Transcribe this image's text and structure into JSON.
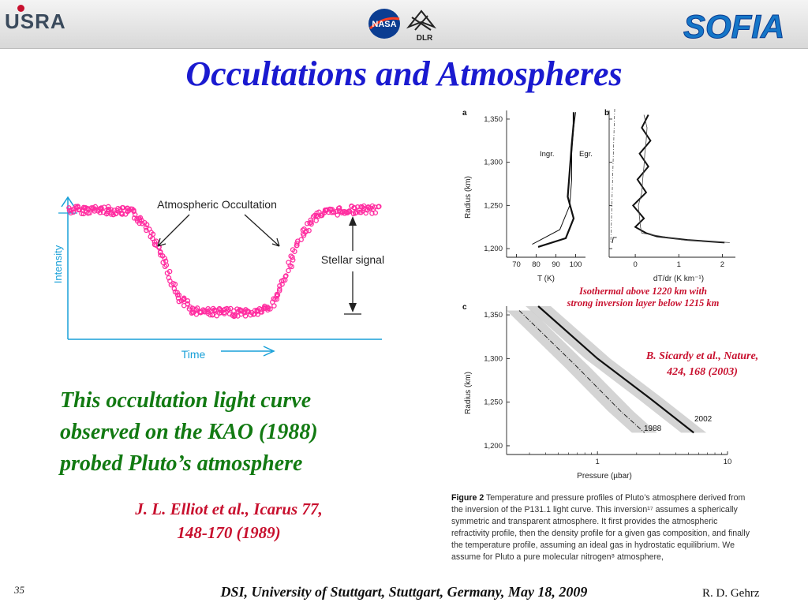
{
  "header": {
    "usra_logo": "USRA",
    "nasa_logo": "NASA",
    "dlr_logo": "DLR",
    "sofia_logo": "SOFIA"
  },
  "title": "Occultations and Atmospheres",
  "left_chart": {
    "annotation": "Atmospheric Occultation",
    "stellar_signal": "Stellar signal",
    "ylabel": "Intensity",
    "xlabel": "Time",
    "point_color": "#ff2da0"
  },
  "chart_data": [
    {
      "type": "scatter",
      "title": "Atmospheric Occultation",
      "xlabel": "Time",
      "ylabel": "Intensity",
      "levels": {
        "baseline": 1.0,
        "occulted": 0.0
      },
      "series": [
        {
          "x": [
            0,
            10,
            20,
            25,
            30,
            35,
            40,
            50,
            60,
            65,
            70,
            75,
            80,
            90,
            100
          ],
          "values": [
            1.0,
            1.0,
            0.98,
            0.85,
            0.55,
            0.15,
            0.02,
            0.0,
            0.0,
            0.05,
            0.35,
            0.75,
            0.96,
            1.0,
            1.0
          ]
        }
      ]
    },
    {
      "type": "line",
      "panel": "a",
      "xlabel": "T (K)",
      "ylabel": "Radius (km)",
      "xticks": [
        "70",
        "80",
        "90",
        "100"
      ],
      "yticks": [
        "1,200",
        "1,250",
        "1,300",
        "1,350"
      ],
      "xlim": [
        65,
        105
      ],
      "ylim": [
        1190,
        1360
      ],
      "series": [
        {
          "name": "Ingr.",
          "x": [
            81,
            95,
            99,
            96,
            97,
            98,
            99,
            99
          ],
          "values": [
            1202,
            1212,
            1235,
            1260,
            1290,
            1320,
            1345,
            1358
          ]
        },
        {
          "name": "Egr.",
          "x": [
            78,
            92,
            97,
            98,
            98,
            99,
            100
          ],
          "values": [
            1205,
            1222,
            1250,
            1280,
            1310,
            1340,
            1358
          ]
        }
      ]
    },
    {
      "type": "line",
      "panel": "b",
      "xlabel": "dT/dr (K km⁻¹)",
      "ylabel": "",
      "xticks": [
        "0",
        "1",
        "2"
      ],
      "yticks": [
        "1,200",
        "1,250",
        "1,300",
        "1,350"
      ],
      "xlim": [
        -0.6,
        2.3
      ],
      "ylim": [
        1190,
        1360
      ],
      "annotations": [
        "Γ"
      ],
      "series": [
        {
          "x": [
            0.3,
            0.15,
            0.35,
            0.1,
            0.3,
            0.05,
            0.25,
            -0.05,
            0.2,
            0.0,
            0.25,
            0.5,
            1.2,
            2.05
          ],
          "values": [
            1355,
            1340,
            1325,
            1310,
            1295,
            1280,
            1265,
            1250,
            1235,
            1225,
            1218,
            1214,
            1210,
            1207
          ]
        }
      ]
    },
    {
      "type": "line",
      "panel": "c",
      "xlabel": "Pressure (µbar)",
      "ylabel": "Radius (km)",
      "xscale": "log",
      "xticks": [
        "1",
        "10"
      ],
      "yticks": [
        "1,200",
        "1,250",
        "1,300",
        "1,350"
      ],
      "xlim": [
        0.2,
        10
      ],
      "ylim": [
        1190,
        1360
      ],
      "series": [
        {
          "name": "2002",
          "x": [
            0.35,
            1.0,
            2.5,
            5.5
          ],
          "values": [
            1360,
            1300,
            1255,
            1215
          ]
        },
        {
          "name": "1988",
          "x": [
            0.25,
            0.7,
            1.5,
            2.3
          ],
          "values": [
            1355,
            1290,
            1240,
            1215
          ]
        }
      ]
    }
  ],
  "plot_labels": {
    "panel_a": "a",
    "panel_b": "b",
    "panel_c": "c",
    "ingress": "Ingr.",
    "egress": "Egr.",
    "gamma": "Γ",
    "a_xlabel": "T (K)",
    "b_xlabel": "dT/dr (K km⁻¹)",
    "radius_label": "Radius (km)",
    "c_xlabel": "Pressure (µbar)",
    "year_2002": "2002",
    "year_1988": "1988"
  },
  "notes": {
    "isothermal_line1": "Isothermal above 1220 km with",
    "isothermal_line2": "strong inversion layer below 1215 km",
    "sicardy_line1": "B. Sicardy et al., Nature,",
    "sicardy_line2": "424, 168 (2003)"
  },
  "body_text": {
    "line1": "This occultation light curve",
    "line2": "observed on the KAO (1988)",
    "line3": "probed Pluto’s atmosphere"
  },
  "elliot": {
    "line1": "J. L. Elliot et al., Icarus 77,",
    "line2": "148-170 (1989)"
  },
  "caption": {
    "label": "Figure 2",
    "text": "Temperature and pressure profiles of Pluto’s atmosphere derived from the inversion of the P131.1 light curve. This inversion¹⁷ assumes a spherically symmetric and transparent atmosphere. It first provides the atmospheric refractivity profile, then the density profile for a given gas composition, and finally the temperature profile, assuming an ideal gas in hydrostatic equilibrium. We assume for Pluto a pure molecular nitrogen⁸ atmosphere,"
  },
  "footer": {
    "slide_number": "35",
    "center": "DSI, University of Stuttgart, Stuttgart, Germany, May 18, 2009",
    "author": "R.  D. Gehrz"
  },
  "colors": {
    "title": "#1a1ad0",
    "green": "#127a12",
    "red": "#c8102e",
    "axis_blue": "#18a0d8"
  }
}
